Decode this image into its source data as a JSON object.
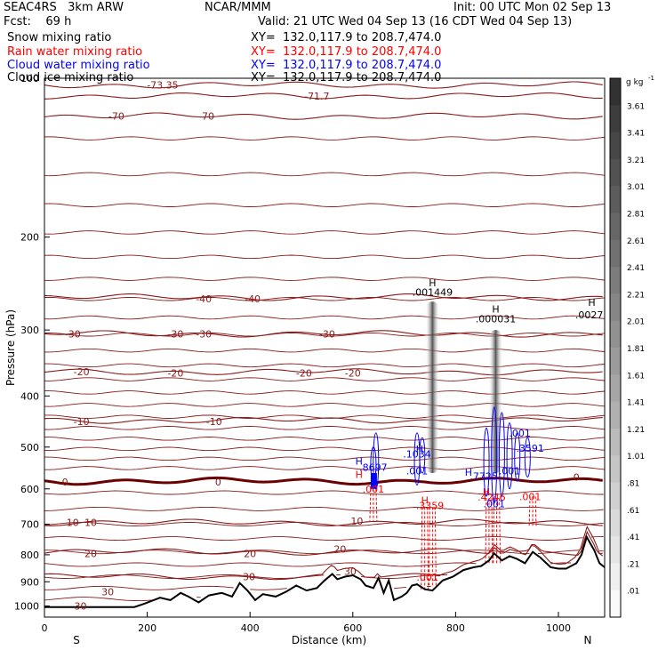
{
  "header": {
    "model": "SEAC4RS   3km ARW",
    "org": "NCAR/MMM",
    "init": "Init: 00 UTC Mon 02 Sep 13",
    "fcst": "Fcst:    69 h",
    "valid": "Valid: 21 UTC Wed 04 Sep 13 (16 CDT Wed 04 Sep 13)"
  },
  "fields": [
    {
      "name": "Snow mixing ratio",
      "xy": "XY=  132.0,117.9 to 208.7,474.0",
      "color": "#000000"
    },
    {
      "name": "Rain water mixing ratio",
      "xy": "XY=  132.0,117.9 to 208.7,474.0",
      "color": "#ff0000"
    },
    {
      "name": "Cloud water mixing ratio",
      "xy": "XY=  132.0,117.9 to 208.7,474.0",
      "color": "#0000ff"
    },
    {
      "name": "Cloud ice mixing ratio",
      "xy": "XY=  132.0,117.9 to 208.7,474.0",
      "color": "#000000"
    }
  ],
  "colorbar": {
    "unit": "g kg",
    "unit_exp": "-1",
    "levels": [
      "3.61",
      "3.41",
      "3.21",
      "3.01",
      "2.81",
      "2.61",
      "2.41",
      "2.21",
      "2.01",
      "1.81",
      "1.61",
      "1.41",
      "1.21",
      "1.01",
      ".81",
      ".61",
      ".41",
      ".21",
      ".01"
    ]
  },
  "colors": {
    "temperature": "#8b1a1a",
    "freezing": "#6b0000",
    "terrain": "#000000",
    "rain": "#ff0000",
    "cloud_water": "#0000ff"
  },
  "chart_data": {
    "type": "cross-section",
    "xlabel": "Distance (km)",
    "ylabel": "Pressure (hPa)",
    "xlim": [
      0,
      1090
    ],
    "ylim": [
      1050,
      100
    ],
    "y_log": true,
    "x_ticks": [
      "0",
      "200",
      "400",
      "600",
      "800",
      "1000"
    ],
    "y_ticks": [
      "100",
      "200",
      "300",
      "400",
      "500",
      "600",
      "700",
      "800",
      "900",
      "1000"
    ],
    "x_end_labels": {
      "left": "S",
      "right": "N"
    },
    "temperature_contours": [
      {
        "label": "-73.35",
        "pressure": 103
      },
      {
        "label": "-71.7",
        "pressure": 108
      },
      {
        "label": "-70",
        "pressure": 118
      },
      {
        "label": "-40",
        "pressure": 260
      },
      {
        "label": "-30",
        "pressure": 305
      },
      {
        "label": "-20",
        "pressure": 360
      },
      {
        "label": "-10",
        "pressure": 445
      },
      {
        "label": "0",
        "pressure": 580
      },
      {
        "label": "10",
        "pressure": 695
      },
      {
        "label": "20",
        "pressure": 790
      },
      {
        "label": "30",
        "pressure": 880
      }
    ],
    "temperature_labels": [
      {
        "text": "-73.35",
        "x": 230,
        "p": 103
      },
      {
        "text": "-71.7",
        "x": 530,
        "p": 108
      },
      {
        "text": "-70",
        "x": 140,
        "p": 118
      },
      {
        "text": "-70",
        "x": 315,
        "p": 118
      },
      {
        "text": "-40",
        "x": 310,
        "p": 262
      },
      {
        "text": "-40",
        "x": 405,
        "p": 262
      },
      {
        "text": "-30",
        "x": 55,
        "p": 305
      },
      {
        "text": "-30",
        "x": 255,
        "p": 305
      },
      {
        "text": "-30",
        "x": 310,
        "p": 305
      },
      {
        "text": "-30",
        "x": 550,
        "p": 305
      },
      {
        "text": "-20",
        "x": 72,
        "p": 360
      },
      {
        "text": "-20",
        "x": 255,
        "p": 362
      },
      {
        "text": "-20",
        "x": 505,
        "p": 362
      },
      {
        "text": "-20",
        "x": 600,
        "p": 362
      },
      {
        "text": "-10",
        "x": 72,
        "p": 447
      },
      {
        "text": "-10",
        "x": 330,
        "p": 447
      },
      {
        "text": "0",
        "x": 40,
        "p": 582
      },
      {
        "text": "0",
        "x": 338,
        "p": 582
      },
      {
        "text": "0",
        "x": 1035,
        "p": 570
      },
      {
        "text": "10",
        "x": 55,
        "p": 695
      },
      {
        "text": "10",
        "x": 90,
        "p": 695
      },
      {
        "text": "10",
        "x": 608,
        "p": 690
      },
      {
        "text": "20",
        "x": 90,
        "p": 795
      },
      {
        "text": "20",
        "x": 400,
        "p": 795
      },
      {
        "text": "20",
        "x": 575,
        "p": 780
      },
      {
        "text": "30",
        "x": 123,
        "p": 940
      },
      {
        "text": "30",
        "x": 398,
        "p": 880
      },
      {
        "text": "30",
        "x": 595,
        "p": 860
      },
      {
        "text": "30",
        "x": 70,
        "p": 1000
      }
    ],
    "terrain": {
      "x": [
        0,
        175,
        195,
        225,
        245,
        265,
        280,
        300,
        320,
        345,
        365,
        380,
        395,
        410,
        425,
        450,
        470,
        490,
        510,
        530,
        545,
        560,
        570,
        585,
        600,
        615,
        625,
        640,
        650,
        660,
        670,
        680,
        695,
        705,
        715,
        725,
        740,
        755,
        775,
        795,
        815,
        835,
        850,
        865,
        875,
        890,
        905,
        920,
        935,
        950,
        965,
        985,
        1000,
        1015,
        1035,
        1045,
        1055,
        1060,
        1070,
        1080,
        1090
      ],
      "p": [
        1005,
        1005,
        990,
        965,
        975,
        945,
        960,
        985,
        955,
        945,
        960,
        905,
        935,
        975,
        950,
        960,
        940,
        915,
        935,
        925,
        895,
        870,
        890,
        880,
        875,
        890,
        915,
        925,
        885,
        945,
        895,
        975,
        960,
        945,
        915,
        910,
        930,
        935,
        895,
        880,
        855,
        845,
        840,
        820,
        795,
        820,
        805,
        815,
        830,
        790,
        810,
        845,
        850,
        850,
        830,
        800,
        740,
        755,
        785,
        830,
        845
      ]
    },
    "snow_shading": [
      {
        "x": 755,
        "p_top": 265,
        "p_bottom": 560,
        "max": 1.4
      },
      {
        "x": 878,
        "p_top": 300,
        "p_bottom": 560,
        "max": 1.6
      }
    ],
    "snow_max_labels": [
      {
        "text": ".001449",
        "x": 755,
        "p": 258
      },
      {
        "text": ".000031",
        "x": 878,
        "p": 290
      },
      {
        "text": ".0027",
        "x": 1060,
        "p": 285
      }
    ],
    "rain_labels": [
      {
        "text": ".3359",
        "x": 750,
        "p": 655
      },
      {
        "text": ".4246",
        "x": 870,
        "p": 632
      },
      {
        "text": ".001",
        "x": 945,
        "p": 630
      },
      {
        "text": ".001",
        "x": 745,
        "p": 895
      },
      {
        "text": ".001",
        "x": 640,
        "p": 610
      }
    ],
    "cloud_water_labels": [
      {
        "text": ".8697",
        "x": 640,
        "p": 555
      },
      {
        "text": ".1034",
        "x": 725,
        "p": 523
      },
      {
        "text": ".001",
        "x": 725,
        "p": 563
      },
      {
        "text": ".7725",
        "x": 855,
        "p": 577
      },
      {
        "text": ".3591",
        "x": 945,
        "p": 510
      },
      {
        "text": ".001",
        "x": 925,
        "p": 478
      },
      {
        "text": ".001",
        "x": 905,
        "p": 563
      },
      {
        "text": ".001",
        "x": 875,
        "p": 650
      }
    ],
    "h_markers": [
      {
        "x": 730,
        "p": 512,
        "color": "blue"
      },
      {
        "x": 612,
        "p": 540,
        "color": "blue"
      },
      {
        "x": 612,
        "p": 572,
        "color": "red"
      },
      {
        "x": 825,
        "p": 567,
        "color": "blue"
      },
      {
        "x": 740,
        "p": 640,
        "color": "red"
      },
      {
        "x": 860,
        "p": 617,
        "color": "red"
      },
      {
        "x": 755,
        "p": 248,
        "color": "black"
      },
      {
        "x": 878,
        "p": 278,
        "color": "black"
      },
      {
        "x": 1065,
        "p": 270,
        "color": "black"
      }
    ]
  }
}
